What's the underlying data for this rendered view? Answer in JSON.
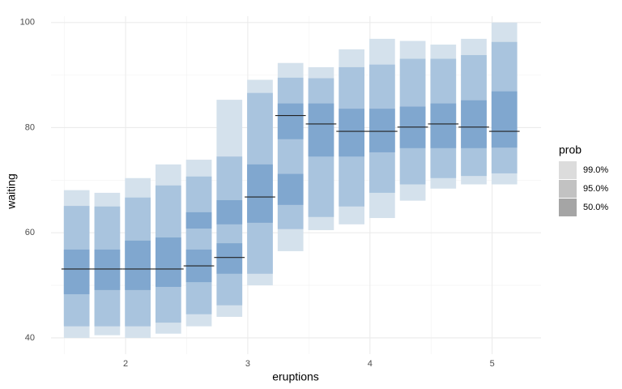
{
  "chart_data": {
    "type": "interval",
    "x_label": "eruptions",
    "y_label": "waiting",
    "xlim": [
      1.39,
      5.4
    ],
    "ylim": [
      36.9,
      101.2
    ],
    "xticks": [
      2,
      3,
      4,
      5
    ],
    "x_minor_ticks": [
      1.5,
      2.5,
      3.5,
      4.5
    ],
    "yticks": [
      40,
      60,
      80,
      100
    ],
    "y_minor_ticks": [
      50,
      70,
      90
    ],
    "grid": true,
    "x": [
      1.6,
      1.85,
      2.1,
      2.35,
      2.6,
      2.85,
      3.1,
      3.35,
      3.6,
      3.85,
      4.1,
      4.35,
      4.6,
      4.85,
      5.1
    ],
    "legend_title": "prob",
    "legend_position": "right",
    "series": [
      {
        "name": "99.0%",
        "color": "#d4e1ec",
        "legend_color": "#dcdcdc",
        "values": [
          [
            [
              40.0,
              68.1
            ]
          ],
          [
            [
              40.5,
              67.6
            ]
          ],
          [
            [
              40.0,
              70.4
            ]
          ],
          [
            [
              40.8,
              73.0
            ]
          ],
          [
            [
              42.2,
              73.9
            ]
          ],
          [
            [
              44.0,
              85.3
            ]
          ],
          [
            [
              50.0,
              89.1
            ]
          ],
          [
            [
              56.5,
              92.3
            ]
          ],
          [
            [
              60.5,
              91.5
            ]
          ],
          [
            [
              61.6,
              94.9
            ]
          ],
          [
            [
              62.8,
              96.9
            ]
          ],
          [
            [
              66.1,
              96.5
            ]
          ],
          [
            [
              68.4,
              95.8
            ]
          ],
          [
            [
              69.2,
              96.9
            ]
          ],
          [
            [
              69.2,
              100.0
            ]
          ]
        ]
      },
      {
        "name": "95.0%",
        "color": "#a9c4de",
        "legend_color": "#c2c2c2",
        "values": [
          [
            [
              42.2,
              65.1
            ]
          ],
          [
            [
              42.2,
              65.0
            ]
          ],
          [
            [
              42.2,
              66.7
            ]
          ],
          [
            [
              42.9,
              69.0
            ]
          ],
          [
            [
              44.5,
              70.7
            ]
          ],
          [
            [
              46.2,
              74.5
            ]
          ],
          [
            [
              52.2,
              86.6
            ]
          ],
          [
            [
              60.7,
              89.5
            ]
          ],
          [
            [
              63.0,
              89.4
            ]
          ],
          [
            [
              65.0,
              91.5
            ]
          ],
          [
            [
              67.6,
              92.0
            ]
          ],
          [
            [
              69.2,
              93.1
            ]
          ],
          [
            [
              70.4,
              93.1
            ]
          ],
          [
            [
              70.8,
              93.8
            ]
          ],
          [
            [
              71.3,
              96.3
            ]
          ]
        ]
      },
      {
        "name": "50.0%",
        "color": "#80a7cf",
        "legend_color": "#a5a5a5",
        "values": [
          [
            [
              48.3,
              56.8
            ]
          ],
          [
            [
              49.1,
              56.8
            ]
          ],
          [
            [
              49.1,
              58.5
            ]
          ],
          [
            [
              49.7,
              59.1
            ]
          ],
          [
            [
              50.6,
              56.8
            ],
            [
              60.8,
              63.9
            ]
          ],
          [
            [
              52.2,
              58.0
            ],
            [
              61.6,
              66.2
            ]
          ],
          [
            [
              61.9,
              73.0
            ]
          ],
          [
            [
              65.3,
              71.2
            ],
            [
              77.8,
              84.6
            ]
          ],
          [
            [
              74.5,
              84.6
            ]
          ],
          [
            [
              74.5,
              83.6
            ]
          ],
          [
            [
              75.3,
              83.6
            ]
          ],
          [
            [
              76.1,
              84.0
            ]
          ],
          [
            [
              76.1,
              84.6
            ]
          ],
          [
            [
              76.1,
              85.2
            ]
          ],
          [
            [
              76.2,
              86.9
            ]
          ]
        ]
      }
    ],
    "point_values": [
      53.1,
      53.1,
      53.1,
      53.1,
      53.7,
      55.3,
      66.8,
      82.3,
      80.7,
      79.3,
      79.3,
      80.1,
      80.7,
      80.1,
      79.3
    ]
  }
}
